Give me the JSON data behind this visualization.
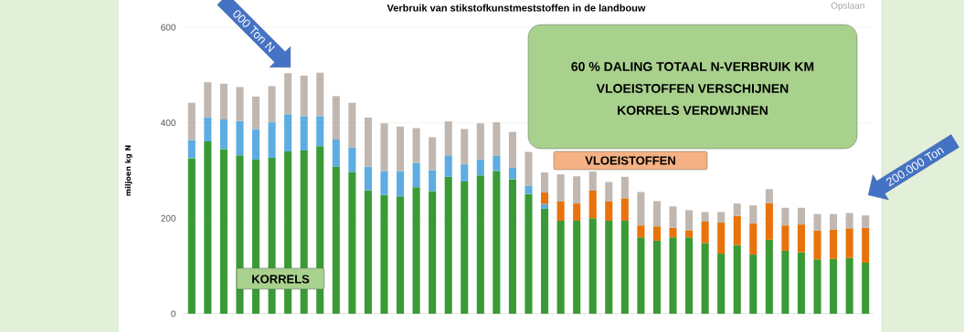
{
  "chart_data": {
    "type": "bar",
    "stacked": true,
    "title": "Verbruik van stikstofkunstmeststoffen in de landbouw",
    "ylabel": "miljoen kg N",
    "categories": [
      null,
      null,
      null,
      null,
      null,
      null,
      null,
      null,
      null,
      null,
      null,
      null,
      null,
      null,
      null,
      null,
      null,
      null,
      null,
      null,
      null,
      null,
      null,
      null,
      null,
      null,
      null,
      null,
      null,
      null,
      null,
      null,
      null,
      null,
      null,
      null,
      null,
      null,
      null,
      null,
      null,
      null,
      null
    ],
    "series": [
      {
        "color": "#3a9a35",
        "values": [
          326,
          361,
          345,
          332,
          323,
          327,
          340,
          342,
          351,
          308,
          297,
          259,
          249,
          246,
          265,
          257,
          287,
          277,
          290,
          299,
          282,
          251,
          220,
          195,
          195,
          200,
          195,
          195,
          160,
          153,
          160,
          160,
          148,
          126,
          144,
          124,
          155,
          132,
          129,
          114,
          115,
          117,
          107
        ]
      },
      {
        "color": "#5dade2",
        "values": [
          38,
          51,
          62,
          72,
          64,
          74,
          78,
          72,
          63,
          57,
          51,
          49,
          50,
          53,
          51,
          44,
          45,
          36,
          33,
          32,
          24,
          17,
          10,
          null,
          null,
          null,
          null,
          null,
          null,
          null,
          null,
          null,
          null,
          null,
          null,
          null,
          null,
          null,
          null,
          null,
          null,
          null,
          null
        ]
      },
      {
        "color": "#e8730c",
        "values": [
          null,
          null,
          null,
          null,
          null,
          null,
          null,
          null,
          null,
          null,
          null,
          null,
          null,
          null,
          null,
          null,
          null,
          null,
          null,
          null,
          null,
          null,
          24,
          40,
          36,
          58,
          40,
          47,
          25,
          30,
          20,
          15,
          45,
          65,
          61,
          65,
          77,
          53,
          58,
          60,
          61,
          62,
          73
        ]
      },
      {
        "color": "#c0b8b0",
        "values": [
          78,
          73,
          75,
          71,
          68,
          76,
          86,
          85,
          91,
          91,
          94,
          103,
          100,
          93,
          73,
          69,
          71,
          74,
          76,
          70,
          75,
          71,
          42,
          57,
          57,
          40,
          41,
          45,
          70,
          53,
          45,
          42,
          20,
          22,
          26,
          38,
          29,
          37,
          35,
          35,
          33,
          32,
          26
        ]
      }
    ],
    "ylim": [
      0,
      600
    ],
    "yticks": [
      0,
      200,
      400,
      600
    ],
    "grid": "y",
    "annotations": [
      "60 % DALING TOTAAL N-VERBRUIK KM",
      "VLOEISTOFFEN VERSCHIJNEN",
      "KORRELS VERDWIJNEN",
      "KORRELS",
      "VLOEISTOFFEN",
      "000 Ton N",
      "200.000 Ton",
      "Opslaan"
    ]
  }
}
